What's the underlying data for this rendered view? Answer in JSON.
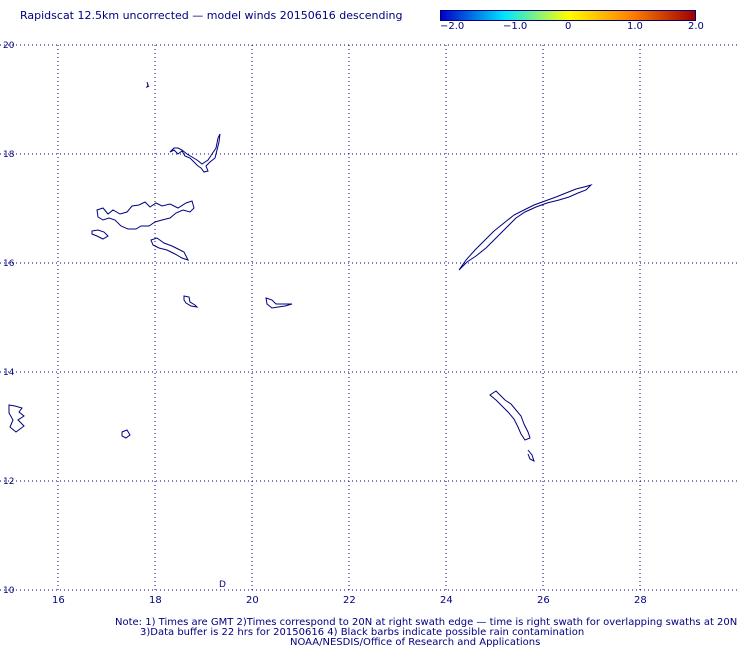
{
  "title": "Rapidscat 12.5km uncorrected — model winds 20150616 descending",
  "colorbar": {
    "labels": [
      "−2.0",
      "−1.0",
      "0",
      "1.0",
      "2.0"
    ],
    "values": [
      -2.0,
      -1.0,
      0,
      1.0,
      2.0
    ],
    "colors": [
      "#0000c8",
      "#00e5ff",
      "#ffff00",
      "#ff8000",
      "#a00000"
    ]
  },
  "map": {
    "x_ticks": [
      "16",
      "18",
      "20",
      "22",
      "24",
      "26",
      "28"
    ],
    "y_ticks": [
      "10",
      "12",
      "14",
      "16",
      "18",
      "20"
    ],
    "lon_range": [
      15,
      29.5
    ],
    "lat_range": [
      10,
      20
    ],
    "coast_color": "#000080",
    "gridlines": true,
    "small_mark": "D"
  },
  "notes": {
    "line1": "Note: 1) Times are GMT 2)Times correspond to 20N at right swath edge — time is right swath for overlapping swaths at 20N",
    "line2": "3)Data buffer is 22 hrs for 20150616 4) Black barbs indicate possible rain contamination",
    "line3": "NOAA/NESDIS/Office of Research and Applications"
  }
}
